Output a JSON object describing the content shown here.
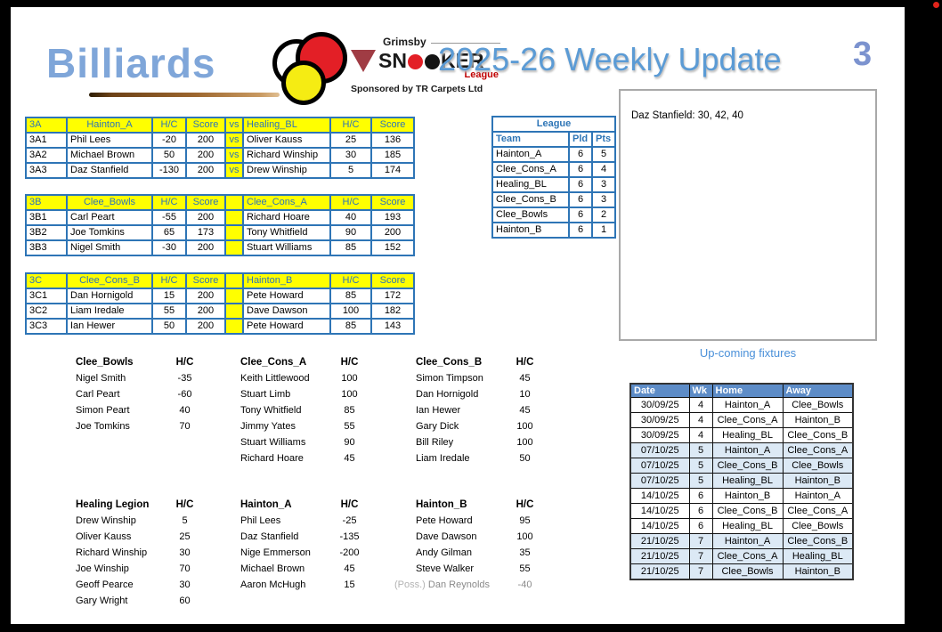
{
  "header": {
    "billiards": "Billiards",
    "snooker": {
      "region": "Grimsby",
      "word_start": "SN",
      "word_end": "KER",
      "league": "League",
      "sponsor": "Sponsored by TR Carpets Ltd"
    },
    "title": "2025-26 Weekly Update",
    "page_number": "3"
  },
  "colors": {
    "table_border_blue": "#2E75B6",
    "header_yellow": "#FFFF00",
    "header_text_blue": "#2E75B6",
    "title_blue": "#5B9BD5",
    "fixtures_header_bg": "#5D8CC7",
    "fixtures_alt_row": "#DCE9F5",
    "ball_red": "#E31F26",
    "ball_yellow": "#F5EC13"
  },
  "match_tables": [
    {
      "code": "3A",
      "home_team": "Hainton_A",
      "away_team": "Healing_BL",
      "hc_label": "H/C",
      "score_label": "Score",
      "vs_label": "vs",
      "rows": [
        [
          "3A1",
          "Phil Lees",
          "-20",
          "200",
          "vs",
          "Oliver Kauss",
          "25",
          "136"
        ],
        [
          "3A2",
          "Michael Brown",
          "50",
          "200",
          "vs",
          "Richard Winship",
          "30",
          "185"
        ],
        [
          "3A3",
          "Daz Stanfield",
          "-130",
          "200",
          "vs",
          "Drew Winship",
          "5",
          "174"
        ]
      ]
    },
    {
      "code": "3B",
      "home_team": "Clee_Bowls",
      "away_team": "Clee_Cons_A",
      "hc_label": "H/C",
      "score_label": "Score",
      "vs_label": "",
      "rows": [
        [
          "3B1",
          "Carl Peart",
          "-55",
          "200",
          "",
          "Richard Hoare",
          "40",
          "193"
        ],
        [
          "3B2",
          "Joe Tomkins",
          "65",
          "173",
          "",
          "Tony Whitfield",
          "90",
          "200"
        ],
        [
          "3B3",
          "Nigel Smith",
          "-30",
          "200",
          "",
          "Stuart Williams",
          "85",
          "152"
        ]
      ]
    },
    {
      "code": "3C",
      "home_team": "Clee_Cons_B",
      "away_team": "Hainton_B",
      "hc_label": "H/C",
      "score_label": "Score",
      "vs_label": "",
      "rows": [
        [
          "3C1",
          "Dan Hornigold",
          "15",
          "200",
          "",
          "Pete Howard",
          "85",
          "172"
        ],
        [
          "3C2",
          "Liam Iredale",
          "55",
          "200",
          "",
          "Dave Dawson",
          "100",
          "182"
        ],
        [
          "3C3",
          "Ian Hewer",
          "50",
          "200",
          "",
          "Pete Howard",
          "85",
          "143"
        ]
      ]
    }
  ],
  "league": {
    "title": "League",
    "headers": [
      "Team",
      "Pld",
      "Pts"
    ],
    "rows": [
      [
        "Hainton_A",
        "6",
        "5"
      ],
      [
        "Clee_Cons_A",
        "6",
        "4"
      ],
      [
        "Healing_BL",
        "6",
        "3"
      ],
      [
        "Clee_Cons_B",
        "6",
        "3"
      ],
      [
        "Clee_Bowls",
        "6",
        "2"
      ],
      [
        "Hainton_B",
        "6",
        "1"
      ]
    ]
  },
  "note_box": {
    "text": "Daz Stanfield: 30, 42, 40"
  },
  "fixtures": {
    "label": "Up-coming fixtures",
    "headers": [
      "Date",
      "Wk",
      "Home",
      "Away"
    ],
    "rows": [
      [
        "30/09/25",
        "4",
        "Hainton_A",
        "Clee_Bowls"
      ],
      [
        "30/09/25",
        "4",
        "Clee_Cons_A",
        "Hainton_B"
      ],
      [
        "30/09/25",
        "4",
        "Healing_BL",
        "Clee_Cons_B"
      ],
      [
        "07/10/25",
        "5",
        "Hainton_A",
        "Clee_Cons_A"
      ],
      [
        "07/10/25",
        "5",
        "Clee_Cons_B",
        "Clee_Bowls"
      ],
      [
        "07/10/25",
        "5",
        "Healing_BL",
        "Hainton_B"
      ],
      [
        "14/10/25",
        "6",
        "Hainton_B",
        "Hainton_A"
      ],
      [
        "14/10/25",
        "6",
        "Clee_Cons_B",
        "Clee_Cons_A"
      ],
      [
        "14/10/25",
        "6",
        "Healing_BL",
        "Clee_Bowls"
      ],
      [
        "21/10/25",
        "7",
        "Hainton_A",
        "Clee_Cons_B"
      ],
      [
        "21/10/25",
        "7",
        "Clee_Cons_A",
        "Healing_BL"
      ],
      [
        "21/10/25",
        "7",
        "Clee_Bowls",
        "Hainton_B"
      ]
    ]
  },
  "rosters": {
    "hc_label": "H/C",
    "groups": [
      {
        "team": "Clee_Bowls",
        "players": [
          {
            "name": "Nigel Smith",
            "hc": "-35"
          },
          {
            "name": "Carl Peart",
            "hc": "-60"
          },
          {
            "name": "Simon Peart",
            "hc": "40"
          },
          {
            "name": "Joe Tomkins",
            "hc": "70"
          }
        ]
      },
      {
        "team": "Clee_Cons_A",
        "players": [
          {
            "name": "Keith Littlewood",
            "hc": "100"
          },
          {
            "name": "Stuart Limb",
            "hc": "100"
          },
          {
            "name": "Tony Whitfield",
            "hc": "85"
          },
          {
            "name": "Jimmy Yates",
            "hc": "55"
          },
          {
            "name": "Stuart Williams",
            "hc": "90"
          },
          {
            "name": "Richard Hoare",
            "hc": "45"
          }
        ]
      },
      {
        "team": "Clee_Cons_B",
        "players": [
          {
            "name": "Simon Timpson",
            "hc": "45"
          },
          {
            "name": "Dan Hornigold",
            "hc": "10"
          },
          {
            "name": "Ian Hewer",
            "hc": "45"
          },
          {
            "name": "Gary Dick",
            "hc": "100"
          },
          {
            "name": "Bill Riley",
            "hc": "100"
          },
          {
            "name": "Liam Iredale",
            "hc": "50"
          }
        ]
      },
      {
        "team": "Healing Legion",
        "players": [
          {
            "name": "Drew Winship",
            "hc": "5"
          },
          {
            "name": "Oliver Kauss",
            "hc": "25"
          },
          {
            "name": "Richard Winship",
            "hc": "30"
          },
          {
            "name": "Joe Winship",
            "hc": "70"
          },
          {
            "name": "Geoff Pearce",
            "hc": "30"
          },
          {
            "name": "Gary Wright",
            "hc": "60"
          }
        ]
      },
      {
        "team": "Hainton_A",
        "players": [
          {
            "name": "Phil Lees",
            "hc": "-25"
          },
          {
            "name": "Daz Stanfield",
            "hc": "-135"
          },
          {
            "name": "Nige Emmerson",
            "hc": "-200"
          },
          {
            "name": "Michael Brown",
            "hc": "45"
          },
          {
            "name": "Aaron McHugh",
            "hc": "15"
          }
        ]
      },
      {
        "team": "Hainton_B",
        "players": [
          {
            "name": "Pete Howard",
            "hc": "95"
          },
          {
            "name": "Dave Dawson",
            "hc": "100"
          },
          {
            "name": "Andy Gilman",
            "hc": "35"
          },
          {
            "name": "Steve Walker",
            "hc": "55"
          },
          {
            "name": "Dan Reynolds",
            "hc": "-40",
            "prefix": "(Poss.)",
            "tentative": true
          }
        ]
      }
    ]
  }
}
